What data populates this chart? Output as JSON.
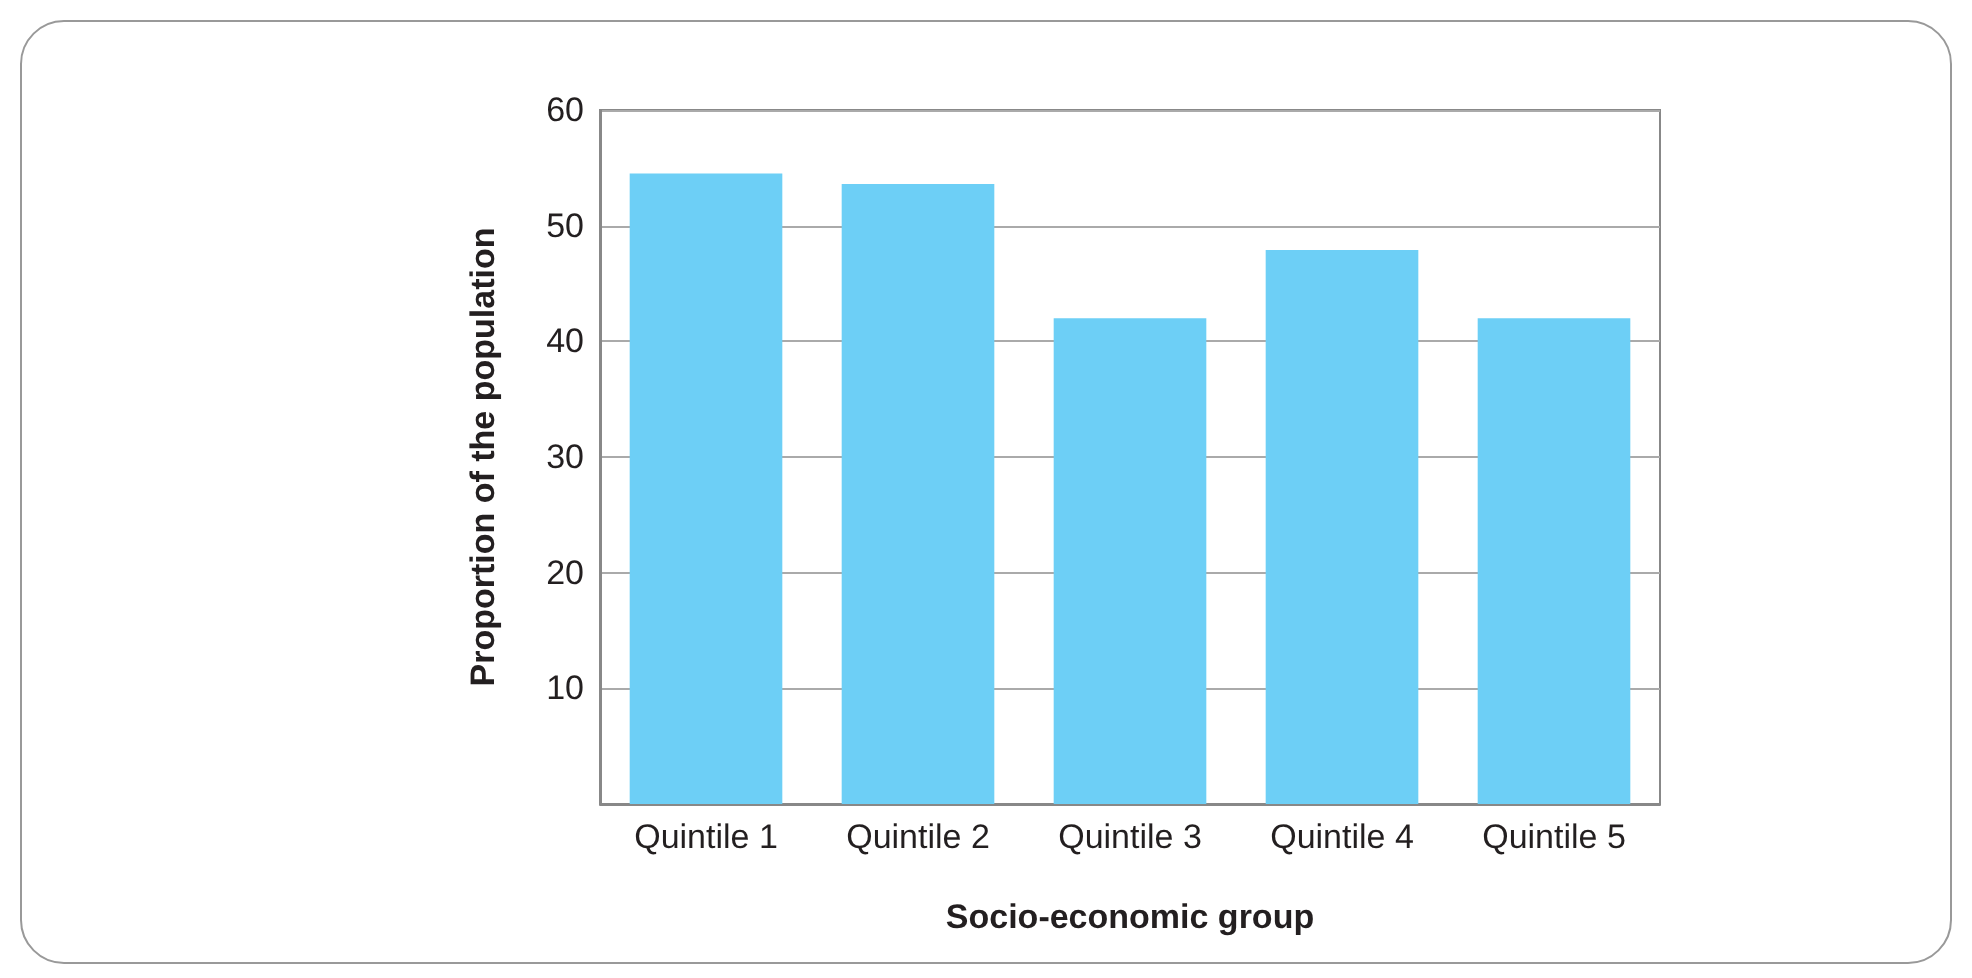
{
  "chart_data": {
    "type": "bar",
    "xlabel": "Socio-economic group",
    "ylabel": "Proportion of the population",
    "categories": [
      "Quintile 1",
      "Quintile 2",
      "Quintile 3",
      "Quintile 4",
      "Quintile 5"
    ],
    "values": [
      54.5,
      53.6,
      42.0,
      47.9,
      42.0
    ],
    "color": "#6dcff6",
    "ylim": [
      0,
      60
    ],
    "yticks": [
      10,
      20,
      30,
      40,
      50,
      60
    ],
    "grid": "y"
  }
}
